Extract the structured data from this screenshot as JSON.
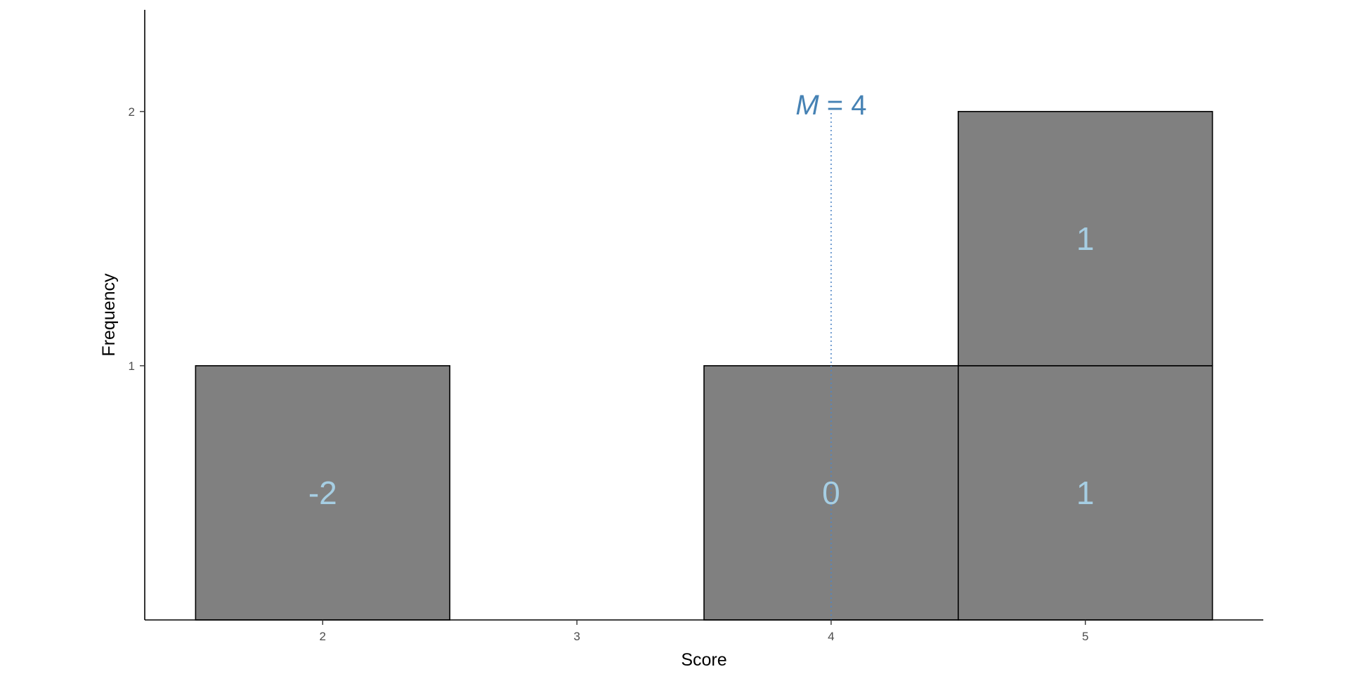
{
  "chart_data": {
    "type": "bar",
    "x_values": [
      2,
      3,
      4,
      5
    ],
    "blocks": [
      {
        "x": 2,
        "level": 1,
        "label": "-2"
      },
      {
        "x": 4,
        "level": 1,
        "label": "0"
      },
      {
        "x": 5,
        "level": 1,
        "label": "1"
      },
      {
        "x": 5,
        "level": 2,
        "label": "1"
      }
    ],
    "frequencies": [
      1,
      0,
      1,
      2
    ],
    "mean": {
      "value": 4,
      "label_symbol": "M",
      "label_eq": " = ",
      "label_value": "4"
    },
    "xlabel": "Score",
    "ylabel": "Frequency",
    "x_ticks": [
      "2",
      "3",
      "4",
      "5"
    ],
    "y_ticks": [
      "1",
      "2"
    ],
    "xlim": [
      1.3,
      5.7
    ],
    "ylim": [
      0,
      2.4
    ],
    "grid": false,
    "colors": {
      "block_fill": "#808080",
      "block_stroke": "#000000",
      "block_label": "#a6cee3",
      "mean_line": "#4f86c6",
      "mean_label": "#4682b4"
    }
  }
}
